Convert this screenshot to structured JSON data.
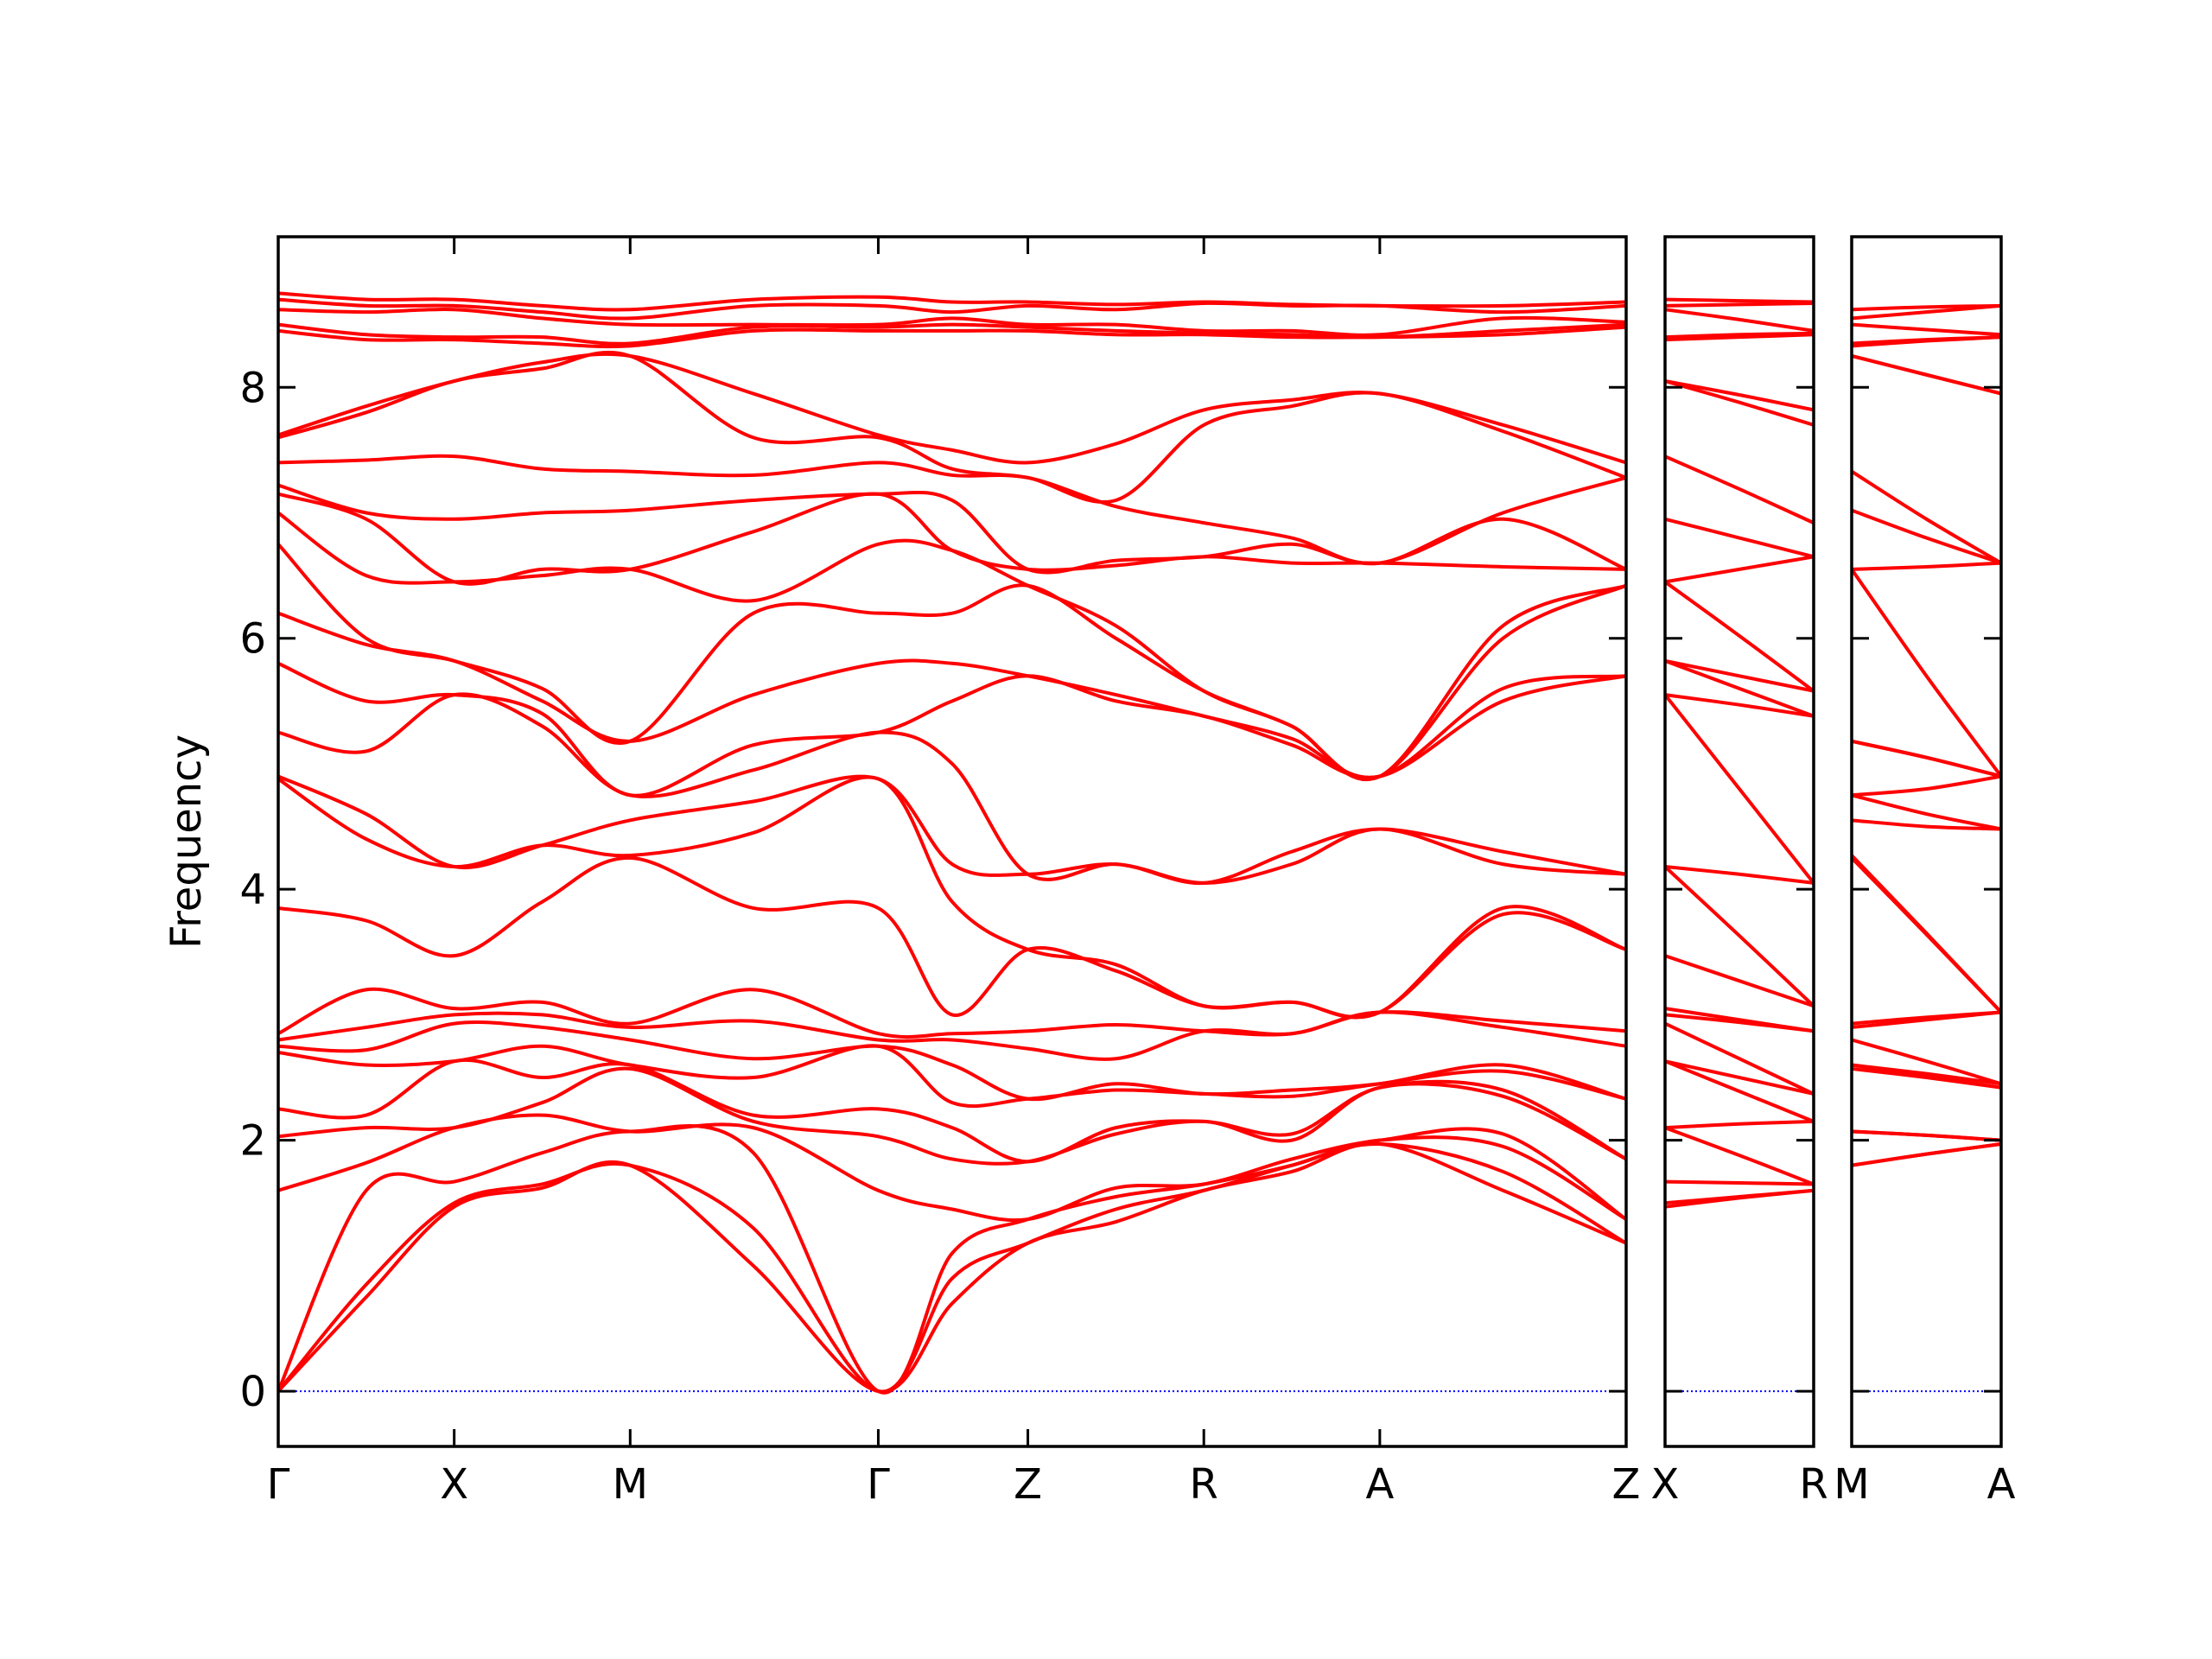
{
  "chart_data": [
    {
      "type": "line",
      "color": "#ff0000",
      "ylabel": "Frequency",
      "x": [
        0,
        0.5,
        1,
        1.5,
        2,
        2.7,
        3.41,
        3.83,
        4.26,
        4.76,
        5.26,
        5.76,
        6.26,
        6.96,
        7.66
      ],
      "xlim": [
        0,
        7.66
      ],
      "ylim": [
        -0.44,
        9.2
      ],
      "xticks": [
        {
          "value": 0,
          "label": "Γ"
        },
        {
          "value": 1,
          "label": "X"
        },
        {
          "value": 2,
          "label": "M"
        },
        {
          "value": 3.41,
          "label": "Γ"
        },
        {
          "value": 4.26,
          "label": "Z"
        },
        {
          "value": 5.26,
          "label": "R"
        },
        {
          "value": 6.26,
          "label": "A"
        },
        {
          "value": 7.66,
          "label": "Z"
        }
      ],
      "yticks": [
        0,
        2,
        4,
        6,
        8
      ],
      "zero_line": 0,
      "zero_line_color": "#0000ff",
      "series": [
        {
          "values": [
            0,
            0.75,
            1.47,
            1.62,
            1.8,
            1.0,
            0,
            0.7,
            1.18,
            1.35,
            1.6,
            1.75,
            1.97,
            1.6,
            1.18
          ]
        },
        {
          "values": [
            0,
            0.85,
            1.5,
            1.65,
            1.8,
            1.3,
            0,
            0.9,
            1.18,
            1.45,
            1.6,
            1.8,
            1.97,
            1.75,
            1.18
          ]
        },
        {
          "values": [
            0,
            1.6,
            1.67,
            1.9,
            2.07,
            1.9,
            0,
            1.1,
            1.37,
            1.55,
            1.65,
            1.8,
            2.0,
            1.95,
            1.37
          ]
        },
        {
          "values": [
            1.6,
            1.82,
            2.1,
            2.2,
            2.07,
            2.1,
            1.6,
            1.45,
            1.37,
            1.62,
            1.65,
            1.85,
            2.0,
            2.05,
            1.37
          ]
        },
        {
          "values": [
            2.03,
            2.1,
            2.1,
            2.3,
            2.57,
            2.15,
            2.03,
            1.85,
            1.83,
            2.05,
            2.15,
            2.0,
            2.42,
            2.35,
            1.85
          ]
        },
        {
          "values": [
            2.25,
            2.2,
            2.63,
            2.5,
            2.6,
            2.2,
            2.25,
            2.1,
            1.83,
            2.1,
            2.15,
            2.05,
            2.42,
            2.4,
            1.85
          ]
        },
        {
          "values": [
            2.7,
            2.6,
            2.63,
            2.75,
            2.6,
            2.5,
            2.75,
            2.3,
            2.33,
            2.4,
            2.37,
            2.35,
            2.45,
            2.55,
            2.33
          ]
        },
        {
          "values": [
            2.75,
            2.72,
            2.93,
            2.9,
            2.8,
            2.65,
            2.75,
            2.6,
            2.33,
            2.45,
            2.37,
            2.4,
            2.45,
            2.6,
            2.33
          ]
        },
        {
          "values": [
            2.8,
            2.9,
            3.0,
            3.0,
            2.9,
            2.95,
            2.8,
            2.8,
            2.73,
            2.65,
            2.87,
            2.85,
            3.02,
            2.9,
            2.75
          ]
        },
        {
          "values": [
            2.85,
            3.2,
            3.05,
            3.1,
            2.93,
            3.2,
            2.85,
            2.85,
            2.87,
            2.92,
            2.87,
            2.85,
            3.02,
            2.95,
            2.87
          ]
        },
        {
          "values": [
            3.85,
            3.75,
            3.47,
            3.9,
            4.25,
            3.85,
            3.85,
            3.0,
            3.52,
            3.35,
            3.07,
            3.1,
            3.02,
            3.8,
            3.52
          ]
        },
        {
          "values": [
            4.88,
            4.4,
            4.18,
            4.35,
            4.27,
            4.45,
            4.88,
            3.9,
            3.52,
            3.4,
            3.07,
            3.1,
            3.02,
            3.85,
            3.52
          ]
        },
        {
          "values": [
            4.9,
            4.6,
            4.18,
            4.35,
            4.55,
            4.7,
            4.88,
            4.2,
            4.12,
            4.2,
            4.05,
            4.2,
            4.48,
            4.2,
            4.12
          ]
        },
        {
          "values": [
            5.25,
            5.1,
            5.55,
            5.3,
            4.75,
            4.95,
            5.25,
            5.0,
            4.12,
            4.2,
            4.05,
            4.3,
            4.48,
            4.3,
            4.12
          ]
        },
        {
          "values": [
            5.8,
            5.5,
            5.55,
            5.4,
            4.75,
            5.15,
            5.25,
            5.5,
            5.7,
            5.5,
            5.38,
            5.15,
            4.9,
            5.5,
            5.7
          ]
        },
        {
          "values": [
            6.2,
            5.95,
            5.82,
            5.5,
            5.18,
            5.55,
            5.8,
            5.8,
            5.7,
            5.55,
            5.38,
            5.2,
            4.9,
            5.6,
            5.7
          ]
        },
        {
          "values": [
            6.75,
            6.0,
            5.82,
            5.6,
            5.18,
            6.2,
            6.2,
            6.2,
            6.42,
            6.0,
            5.58,
            5.3,
            4.9,
            6.0,
            6.42
          ]
        },
        {
          "values": [
            7.0,
            6.5,
            6.45,
            6.5,
            6.55,
            6.3,
            6.75,
            6.7,
            6.42,
            6.1,
            5.58,
            5.3,
            4.9,
            6.1,
            6.42
          ]
        },
        {
          "values": [
            7.15,
            6.95,
            6.45,
            6.55,
            6.55,
            6.85,
            7.15,
            6.7,
            6.55,
            6.58,
            6.65,
            6.6,
            6.6,
            6.57,
            6.55
          ]
        },
        {
          "values": [
            7.22,
            7.0,
            6.95,
            7.0,
            7.02,
            7.1,
            7.15,
            7.1,
            6.55,
            6.62,
            6.65,
            6.75,
            6.6,
            6.95,
            6.55
          ]
        },
        {
          "values": [
            7.4,
            7.42,
            7.45,
            7.35,
            7.33,
            7.3,
            7.4,
            7.3,
            7.28,
            7.05,
            6.92,
            6.8,
            6.6,
            7.0,
            7.28
          ]
        },
        {
          "values": [
            7.6,
            7.8,
            8.05,
            8.15,
            8.25,
            7.6,
            7.6,
            7.35,
            7.28,
            7.1,
            7.7,
            7.85,
            7.95,
            7.65,
            7.28
          ]
        },
        {
          "values": [
            7.62,
            7.85,
            8.05,
            8.2,
            8.25,
            7.95,
            7.62,
            7.5,
            7.4,
            7.55,
            7.82,
            7.9,
            7.95,
            7.7,
            7.4
          ]
        },
        {
          "values": [
            8.45,
            8.38,
            8.38,
            8.35,
            8.33,
            8.45,
            8.45,
            8.45,
            8.45,
            8.42,
            8.42,
            8.4,
            8.4,
            8.42,
            8.48
          ]
        },
        {
          "values": [
            8.5,
            8.42,
            8.4,
            8.4,
            8.35,
            8.48,
            8.48,
            8.5,
            8.48,
            8.45,
            8.43,
            8.42,
            8.4,
            8.45,
            8.5
          ]
        },
        {
          "values": [
            8.62,
            8.6,
            8.62,
            8.55,
            8.5,
            8.5,
            8.5,
            8.55,
            8.5,
            8.5,
            8.45,
            8.45,
            8.42,
            8.55,
            8.52
          ]
        },
        {
          "values": [
            8.7,
            8.65,
            8.65,
            8.6,
            8.55,
            8.65,
            8.65,
            8.6,
            8.65,
            8.62,
            8.67,
            8.65,
            8.65,
            8.6,
            8.65
          ]
        },
        {
          "values": [
            8.75,
            8.7,
            8.7,
            8.65,
            8.62,
            8.7,
            8.72,
            8.68,
            8.68,
            8.66,
            8.68,
            8.66,
            8.65,
            8.65,
            8.68
          ]
        }
      ]
    },
    {
      "type": "line",
      "color": "#ff0000",
      "x": [
        0,
        0.425,
        0.85
      ],
      "xlim": [
        0,
        0.85
      ],
      "ylim": [
        -0.44,
        9.2
      ],
      "xticks": [
        {
          "value": 0,
          "label": "X"
        },
        {
          "value": 0.85,
          "label": "R"
        }
      ],
      "yticks": [
        0,
        2,
        4,
        6,
        8
      ],
      "ytick_labels": false,
      "zero_line": 0,
      "zero_line_color": "#0000ff",
      "series": [
        {
          "values": [
            1.47,
            1.54,
            1.6
          ]
        },
        {
          "values": [
            1.5,
            1.55,
            1.6
          ]
        },
        {
          "values": [
            1.67,
            1.66,
            1.65
          ]
        },
        {
          "values": [
            2.1,
            1.88,
            1.65
          ]
        },
        {
          "values": [
            2.1,
            2.13,
            2.15
          ]
        },
        {
          "values": [
            2.63,
            2.39,
            2.15
          ]
        },
        {
          "values": [
            2.63,
            2.5,
            2.37
          ]
        },
        {
          "values": [
            2.93,
            2.65,
            2.37
          ]
        },
        {
          "values": [
            3.0,
            2.94,
            2.87
          ]
        },
        {
          "values": [
            3.05,
            2.96,
            2.87
          ]
        },
        {
          "values": [
            3.47,
            3.27,
            3.07
          ]
        },
        {
          "values": [
            4.18,
            3.63,
            3.07
          ]
        },
        {
          "values": [
            4.18,
            4.12,
            4.05
          ]
        },
        {
          "values": [
            5.55,
            4.8,
            4.05
          ]
        },
        {
          "values": [
            5.55,
            5.47,
            5.38
          ]
        },
        {
          "values": [
            5.82,
            5.6,
            5.38
          ]
        },
        {
          "values": [
            5.82,
            5.7,
            5.58
          ]
        },
        {
          "values": [
            6.45,
            6.02,
            5.58
          ]
        },
        {
          "values": [
            6.45,
            6.55,
            6.65
          ]
        },
        {
          "values": [
            6.95,
            6.8,
            6.65
          ]
        },
        {
          "values": [
            7.45,
            7.19,
            6.92
          ]
        },
        {
          "values": [
            8.05,
            7.88,
            7.7
          ]
        },
        {
          "values": [
            8.05,
            7.94,
            7.82
          ]
        },
        {
          "values": [
            8.38,
            8.4,
            8.42
          ]
        },
        {
          "values": [
            8.4,
            8.42,
            8.43
          ]
        },
        {
          "values": [
            8.62,
            8.54,
            8.45
          ]
        },
        {
          "values": [
            8.65,
            8.66,
            8.67
          ]
        },
        {
          "values": [
            8.7,
            8.69,
            8.68
          ]
        }
      ]
    },
    {
      "type": "line",
      "color": "#ff0000",
      "x": [
        0,
        0.425,
        0.85
      ],
      "xlim": [
        0,
        0.85
      ],
      "ylim": [
        -0.44,
        9.2
      ],
      "xticks": [
        {
          "value": 0,
          "label": "M"
        },
        {
          "value": 0.85,
          "label": "A"
        }
      ],
      "yticks": [
        0,
        2,
        4,
        6,
        8
      ],
      "ytick_labels": false,
      "zero_line": 0,
      "zero_line_color": "#0000ff",
      "series": [
        {
          "values": [
            1.8,
            1.89,
            1.97
          ]
        },
        {
          "values": [
            1.8,
            1.89,
            1.97
          ]
        },
        {
          "values": [
            2.07,
            2.04,
            2.0
          ]
        },
        {
          "values": [
            2.07,
            2.04,
            2.0
          ]
        },
        {
          "values": [
            2.57,
            2.5,
            2.42
          ]
        },
        {
          "values": [
            2.6,
            2.51,
            2.42
          ]
        },
        {
          "values": [
            2.6,
            2.53,
            2.45
          ]
        },
        {
          "values": [
            2.8,
            2.63,
            2.45
          ]
        },
        {
          "values": [
            2.9,
            2.96,
            3.02
          ]
        },
        {
          "values": [
            2.93,
            2.98,
            3.02
          ]
        },
        {
          "values": [
            4.25,
            3.64,
            3.02
          ]
        },
        {
          "values": [
            4.27,
            3.65,
            3.02
          ]
        },
        {
          "values": [
            4.55,
            4.5,
            4.48
          ]
        },
        {
          "values": [
            4.75,
            4.6,
            4.48
          ]
        },
        {
          "values": [
            4.75,
            4.8,
            4.9
          ]
        },
        {
          "values": [
            5.18,
            5.05,
            4.9
          ]
        },
        {
          "values": [
            5.18,
            5.05,
            4.9
          ]
        },
        {
          "values": [
            6.55,
            5.7,
            4.9
          ]
        },
        {
          "values": [
            6.55,
            6.57,
            6.6
          ]
        },
        {
          "values": [
            7.02,
            6.8,
            6.6
          ]
        },
        {
          "values": [
            7.33,
            6.95,
            6.6
          ]
        },
        {
          "values": [
            8.25,
            8.1,
            7.95
          ]
        },
        {
          "values": [
            8.25,
            8.1,
            7.95
          ]
        },
        {
          "values": [
            8.33,
            8.37,
            8.4
          ]
        },
        {
          "values": [
            8.35,
            8.38,
            8.4
          ]
        },
        {
          "values": [
            8.5,
            8.46,
            8.42
          ]
        },
        {
          "values": [
            8.55,
            8.6,
            8.65
          ]
        },
        {
          "values": [
            8.62,
            8.64,
            8.65
          ]
        }
      ]
    }
  ]
}
